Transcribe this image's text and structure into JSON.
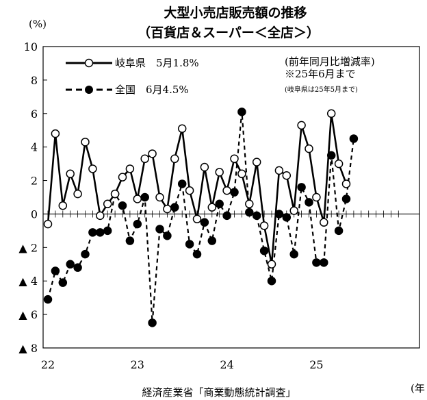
{
  "chart_data": {
    "type": "line",
    "title": "大型小売店販売額の推移",
    "subtitle": "（百貨店＆スーパー＜全店＞）",
    "ylabel": "(%)",
    "note": "(前年同月比増減率)",
    "note2": "※25年6月まで",
    "note3": "(岐阜県は25年5月まで)",
    "source": "経済産業省「商業動態統計調査」",
    "xunit": "(年",
    "ylim": [
      -8,
      10
    ],
    "yticks": [
      {
        "value": 10,
        "label": "10"
      },
      {
        "value": 8,
        "label": "8"
      },
      {
        "value": 6,
        "label": "6"
      },
      {
        "value": 4,
        "label": "4"
      },
      {
        "value": 2,
        "label": "2"
      },
      {
        "value": 0,
        "label": "0"
      },
      {
        "value": -2,
        "label": "▲ 2"
      },
      {
        "value": -4,
        "label": "▲ 4"
      },
      {
        "value": -6,
        "label": "▲ 6"
      },
      {
        "value": -8,
        "label": "▲ 8"
      }
    ],
    "xticks": [
      {
        "index": 0,
        "label": "22"
      },
      {
        "index": 12,
        "label": "23"
      },
      {
        "index": 24,
        "label": "24"
      },
      {
        "index": 36,
        "label": "25"
      }
    ],
    "n_months": 48,
    "legend_position": "top-left",
    "series": [
      {
        "name": "岐阜県",
        "legend_label": "岐阜県　5月1.8%",
        "style": "solid",
        "marker": "open-circle",
        "color": "#000000",
        "values": [
          -0.6,
          4.8,
          0.5,
          2.4,
          1.2,
          4.3,
          2.7,
          -0.1,
          0.6,
          1.2,
          2.2,
          2.7,
          0.9,
          3.3,
          3.6,
          1.0,
          0.3,
          3.3,
          5.1,
          1.4,
          -0.3,
          2.8,
          0.4,
          2.5,
          1.4,
          3.3,
          2.4,
          0.6,
          3.1,
          -0.7,
          -3.0,
          2.6,
          2.3,
          0.2,
          5.3,
          3.9,
          1.0,
          -0.5,
          6.0,
          3.0,
          1.8
        ]
      },
      {
        "name": "全国",
        "legend_label": "全国　6月4.5%",
        "style": "dashed",
        "marker": "filled-circle",
        "color": "#000000",
        "values": [
          -5.1,
          -3.4,
          -4.1,
          -3.0,
          -3.2,
          -2.4,
          -1.1,
          -1.1,
          -1.0,
          1.2,
          0.5,
          -1.6,
          -0.6,
          1.0,
          -6.5,
          -0.9,
          -1.3,
          0.4,
          1.8,
          -1.8,
          -2.4,
          -0.5,
          -1.6,
          0.6,
          -0.1,
          1.3,
          6.1,
          0.1,
          -0.1,
          -2.2,
          -4.0,
          0.0,
          -0.2,
          -2.4,
          1.6,
          0.7,
          -2.9,
          -2.9,
          3.5,
          -1.0,
          0.9,
          4.5
        ]
      }
    ]
  }
}
